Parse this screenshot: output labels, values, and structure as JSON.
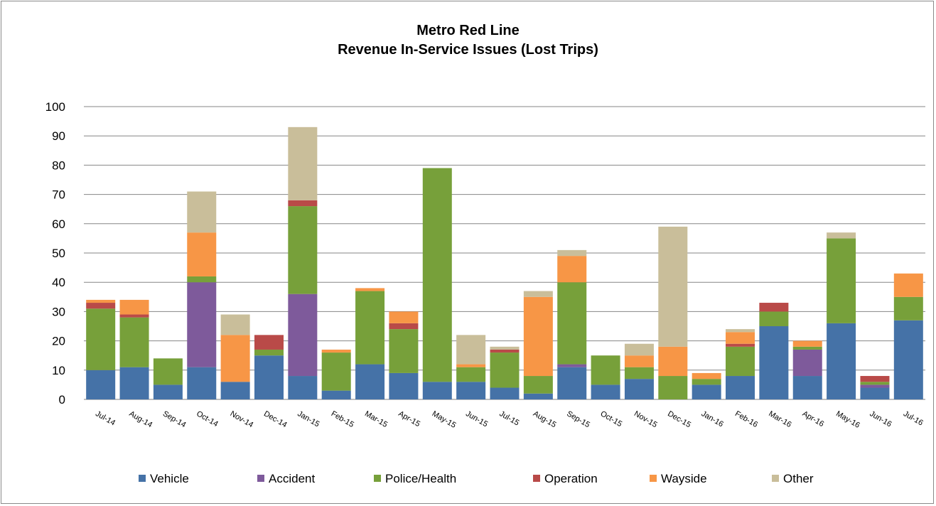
{
  "chart_data": {
    "type": "bar",
    "stacked": true,
    "title": [
      "Metro Red Line",
      "Revenue In-Service Issues (Lost Trips)"
    ],
    "ylim": [
      0,
      100
    ],
    "yticks": [
      0,
      10,
      20,
      30,
      40,
      50,
      60,
      70,
      80,
      90,
      100
    ],
    "grid": true,
    "legend_position": "bottom",
    "categories": [
      "Jul-14",
      "Aug-14",
      "Sep-14",
      "Oct-14",
      "Nov-14",
      "Dec-14",
      "Jan-15",
      "Feb-15",
      "Mar-15",
      "Apr-15",
      "May-15",
      "Jun-15",
      "Jul-15",
      "Aug-15",
      "Sep-15",
      "Oct-15",
      "Nov-15",
      "Dec-15",
      "Jan-16",
      "Feb-16",
      "Mar-16",
      "Apr-16",
      "May-16",
      "Jun-16",
      "Jul-16"
    ],
    "series": [
      {
        "name": "Vehicle",
        "color": "#4572A7",
        "values": [
          10,
          11,
          5,
          11,
          6,
          15,
          8,
          3,
          12,
          9,
          6,
          6,
          4,
          2,
          11,
          5,
          7,
          0,
          5,
          8,
          25,
          8,
          26,
          4,
          27
        ]
      },
      {
        "name": "Accident",
        "color": "#7E5A9B",
        "values": [
          0,
          0,
          0,
          29,
          0,
          0,
          28,
          0,
          0,
          0,
          0,
          0,
          0,
          0,
          1,
          0,
          0,
          0,
          0,
          0,
          0,
          9,
          0,
          1,
          0
        ]
      },
      {
        "name": "Police/Health",
        "color": "#77A03A",
        "values": [
          21,
          17,
          9,
          2,
          0,
          2,
          30,
          13,
          25,
          15,
          73,
          5,
          12,
          6,
          28,
          10,
          4,
          8,
          2,
          10,
          5,
          1,
          29,
          1,
          8
        ]
      },
      {
        "name": "Operation",
        "color": "#B94A48",
        "values": [
          2,
          1,
          0,
          0,
          0,
          5,
          2,
          0,
          0,
          2,
          0,
          0,
          1,
          0,
          0,
          0,
          0,
          0,
          0,
          1,
          3,
          0,
          0,
          2,
          0
        ]
      },
      {
        "name": "Wayside",
        "color": "#F79646",
        "values": [
          1,
          5,
          0,
          15,
          16,
          0,
          0,
          1,
          1,
          4,
          0,
          1,
          0,
          27,
          9,
          0,
          4,
          10,
          2,
          4,
          0,
          2,
          0,
          0,
          8
        ]
      },
      {
        "name": "Other",
        "color": "#C9BE9A",
        "values": [
          0,
          0,
          0,
          14,
          7,
          0,
          25,
          0,
          0,
          0,
          0,
          10,
          1,
          2,
          2,
          0,
          4,
          41,
          0,
          1,
          0,
          0,
          2,
          0,
          0
        ]
      }
    ]
  }
}
